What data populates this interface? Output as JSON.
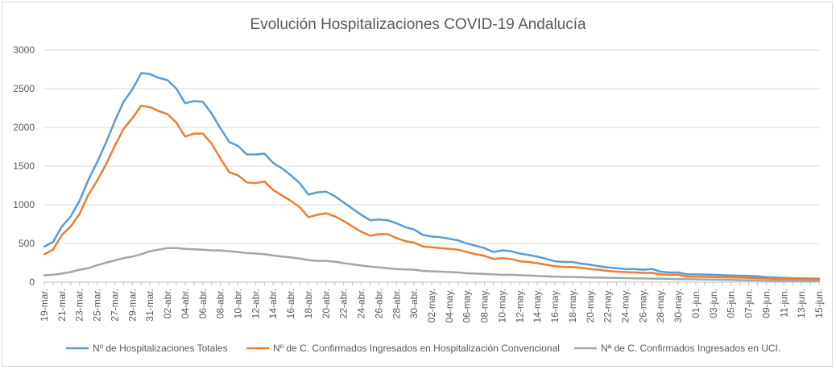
{
  "chart_data": {
    "type": "line",
    "title": "Evolución Hospitalizaciones COVID-19 Andalucía",
    "xlabel": "",
    "ylabel": "",
    "ylim": [
      0,
      3000
    ],
    "yticks": [
      "0",
      "500",
      "1000",
      "1500",
      "2000",
      "2500",
      "3000"
    ],
    "grid": true,
    "legend_position": "bottom",
    "x": [
      "19-mar.",
      "20-mar.",
      "21-mar.",
      "22-mar.",
      "23-mar.",
      "24-mar.",
      "25-mar.",
      "26-mar.",
      "27-mar.",
      "28-mar.",
      "29-mar.",
      "30-mar.",
      "31-mar.",
      "01-abr.",
      "02-abr.",
      "03-abr.",
      "04-abr.",
      "05-abr.",
      "06-abr.",
      "07-abr.",
      "08-abr.",
      "09-abr.",
      "10-abr.",
      "11-abr.",
      "12-abr.",
      "13-abr.",
      "14-abr.",
      "15-abr.",
      "16-abr.",
      "17-abr.",
      "18-abr.",
      "19-abr.",
      "20-abr.",
      "21-abr.",
      "22-abr.",
      "23-abr.",
      "24-abr.",
      "25-abr.",
      "26-abr.",
      "27-abr.",
      "28-abr.",
      "29-abr.",
      "30-abr.",
      "01-may.",
      "02-may.",
      "03-may.",
      "04-may.",
      "05-may.",
      "06-may.",
      "07-may.",
      "08-may.",
      "09-may.",
      "10-may.",
      "11-may.",
      "12-may.",
      "13-may.",
      "14-may.",
      "15-may.",
      "16-may.",
      "17-may.",
      "18-may.",
      "19-may.",
      "20-may.",
      "21-may.",
      "22-may.",
      "23-may.",
      "24-may.",
      "25-may.",
      "26-may.",
      "27-may.",
      "28-may.",
      "29-may.",
      "30-may.",
      "31-may.",
      "01-jun.",
      "02-jun.",
      "03-jun.",
      "04-jun.",
      "05-jun.",
      "06-jun.",
      "07-jun.",
      "08-jun.",
      "09-jun.",
      "10-jun.",
      "11-jun.",
      "12-jun.",
      "13-jun.",
      "14-jun.",
      "15-jun."
    ],
    "xticks": [
      "19-mar.",
      "21-mar.",
      "23-mar.",
      "25-mar.",
      "27-mar.",
      "29-mar.",
      "31-mar.",
      "02-abr.",
      "04-abr.",
      "06-abr.",
      "08-abr.",
      "10-abr.",
      "12-abr.",
      "14-abr.",
      "16-abr.",
      "18-abr.",
      "20-abr.",
      "22-abr.",
      "24-abr.",
      "26-abr.",
      "28-abr.",
      "30-abr.",
      "02-may.",
      "04-may.",
      "06-may.",
      "08-may.",
      "10-may.",
      "12-may.",
      "14-may.",
      "16-may.",
      "18-may.",
      "20-may.",
      "22-may.",
      "24-may.",
      "26-may.",
      "28-may.",
      "30-may.",
      "01-jun.",
      "03-jun.",
      "05-jun.",
      "07-jun.",
      "09-jun.",
      "11-jun.",
      "13-jun.",
      "15-jun."
    ],
    "series": [
      {
        "name": "Nº de Hospitalizaciones Totales",
        "color": "#5b9bd5",
        "values": [
          460,
          520,
          720,
          850,
          1050,
          1320,
          1550,
          1800,
          2080,
          2330,
          2490,
          2700,
          2690,
          2640,
          2610,
          2500,
          2310,
          2340,
          2330,
          2180,
          1990,
          1810,
          1760,
          1650,
          1650,
          1660,
          1540,
          1470,
          1380,
          1280,
          1130,
          1160,
          1170,
          1110,
          1030,
          950,
          870,
          800,
          810,
          800,
          760,
          710,
          680,
          610,
          590,
          580,
          560,
          540,
          500,
          470,
          440,
          390,
          410,
          400,
          370,
          350,
          330,
          300,
          270,
          260,
          260,
          240,
          225,
          205,
          190,
          180,
          170,
          170,
          160,
          170,
          135,
          125,
          125,
          100,
          100,
          98,
          95,
          90,
          86,
          83,
          80,
          75,
          65,
          60,
          55,
          50,
          48,
          47,
          45
        ]
      },
      {
        "name": "Nº de C. Confirmados Ingresados en Hospitalización Convencional",
        "color": "#ed7d31",
        "values": [
          360,
          420,
          610,
          720,
          880,
          1130,
          1310,
          1520,
          1760,
          1980,
          2120,
          2280,
          2260,
          2210,
          2170,
          2060,
          1880,
          1920,
          1920,
          1790,
          1600,
          1420,
          1380,
          1290,
          1280,
          1300,
          1190,
          1120,
          1050,
          970,
          840,
          870,
          890,
          850,
          790,
          720,
          650,
          600,
          620,
          620,
          570,
          530,
          510,
          460,
          450,
          440,
          430,
          420,
          390,
          360,
          340,
          300,
          310,
          300,
          270,
          260,
          245,
          225,
          205,
          195,
          195,
          185,
          170,
          160,
          145,
          135,
          130,
          125,
          120,
          120,
          100,
          95,
          95,
          70,
          70,
          68,
          65,
          62,
          60,
          58,
          55,
          52,
          48,
          45,
          42,
          40,
          38,
          37,
          36
        ]
      },
      {
        "name": "Nª de C. Confirmados Ingresados en UCI.",
        "color": "#a5a5a5",
        "values": [
          90,
          95,
          110,
          130,
          160,
          180,
          220,
          250,
          280,
          310,
          330,
          360,
          400,
          420,
          440,
          440,
          430,
          425,
          420,
          410,
          410,
          400,
          390,
          375,
          370,
          360,
          345,
          330,
          320,
          305,
          285,
          275,
          275,
          265,
          245,
          230,
          215,
          200,
          190,
          180,
          170,
          165,
          160,
          145,
          140,
          135,
          130,
          125,
          115,
          110,
          105,
          100,
          95,
          95,
          90,
          85,
          80,
          75,
          70,
          68,
          66,
          64,
          60,
          58,
          56,
          54,
          52,
          50,
          48,
          46,
          44,
          42,
          40,
          38,
          36,
          34,
          32,
          30,
          28,
          26,
          24,
          22,
          20,
          19,
          18,
          17,
          16,
          15,
          14
        ]
      }
    ]
  }
}
